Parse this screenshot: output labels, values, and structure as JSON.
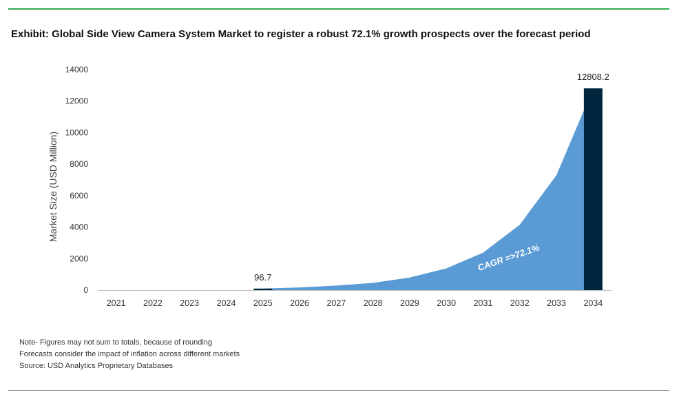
{
  "title": "Exhibit: Global Side View Camera System Market to register a robust 72.1% growth prospects over the forecast period",
  "notes": [
    "Note- Figures may not sum to totals, because of rounding",
    "Forecasts consider the impact of inflation across different markets",
    "Source: USD Analytics Proprietary Databases"
  ],
  "colors": {
    "area": "#5b9bd5",
    "final_bar": "#00263e",
    "base_bar": "#00263e",
    "rule_top": "#2eaa4f"
  },
  "chart_data": {
    "type": "area",
    "title": "Exhibit: Global Side View Camera System Market to register a robust 72.1% growth prospects over the forecast period",
    "xlabel": "",
    "ylabel": "Market Size (USD Million)",
    "ylim": [
      0,
      14000
    ],
    "yticks": [
      0,
      2000,
      4000,
      6000,
      8000,
      10000,
      12000,
      14000
    ],
    "categories": [
      "2021",
      "2022",
      "2023",
      "2024",
      "2025",
      "2026",
      "2027",
      "2028",
      "2029",
      "2030",
      "2031",
      "2032",
      "2033",
      "2034"
    ],
    "values": [
      0,
      0,
      0,
      0,
      96.7,
      170,
      290,
      460,
      800,
      1380,
      2380,
      4150,
      7300,
      12808.2
    ],
    "data_labels": [
      {
        "category": "2025",
        "text": "96.7"
      },
      {
        "category": "2034",
        "text": "12808.2"
      }
    ],
    "annotation": "CAGR =>72.1%",
    "grid": false,
    "legend": "none"
  }
}
